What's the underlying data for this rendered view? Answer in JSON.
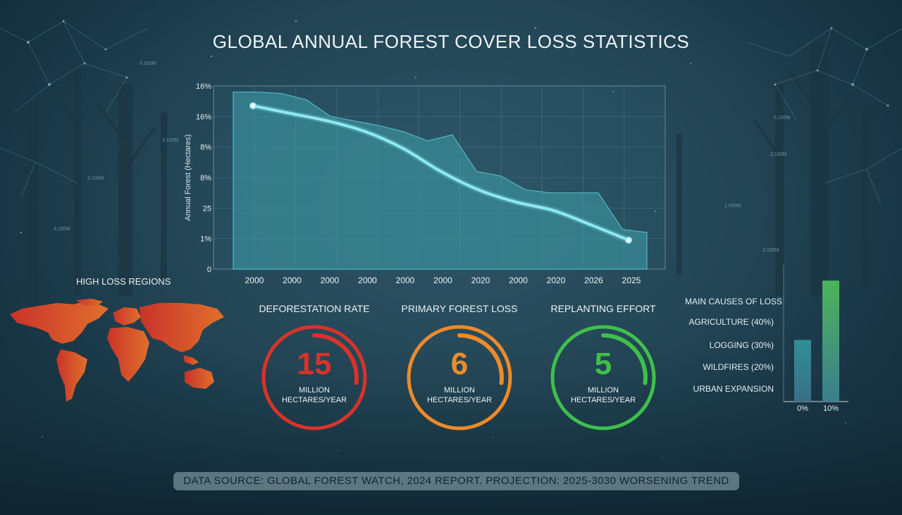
{
  "title": "GLOBAL ANNUAL FOREST COVER LOSS STATISTICS",
  "colors": {
    "accent": "#7fe3ee",
    "red": "#d8332a",
    "orange": "#ee8a2a",
    "green": "#3fbf4b"
  },
  "chart_data": [
    {
      "type": "area",
      "title": "GLOBAL ANNUAL FOREST COVER LOSS STATISTICS",
      "ylabel": "Annual Forest (Hectares)",
      "xlabel": "",
      "y_tick_labels": [
        "0",
        "1%",
        "25",
        "8%",
        "8%",
        "16%",
        "16%"
      ],
      "x_tick_labels": [
        "2000",
        "2000",
        "2000",
        "2000",
        "2000",
        "2000",
        "2020",
        "2000",
        "2020",
        "2026",
        "2025"
      ],
      "grid": true,
      "ylim": [
        0,
        6
      ],
      "series": [
        {
          "values": [
            5.8,
            5.8,
            5.75,
            5.55,
            5.0,
            4.85,
            4.7,
            4.5,
            4.2,
            4.4,
            3.2,
            3.05,
            2.6,
            2.5,
            2.5,
            2.5,
            1.3,
            1.2
          ]
        },
        {
          "values": [
            5.35,
            5.1,
            4.85,
            4.5,
            3.95,
            3.2,
            2.6,
            2.2,
            1.92,
            1.45,
            0.95
          ]
        }
      ]
    },
    {
      "type": "bar",
      "title": "MAIN CAUSES OF LOSS",
      "categories": [
        "0%",
        "10%"
      ],
      "values": [
        2.6,
        5.1
      ],
      "causes": [
        "AGRICULTURE (40%)",
        "LOGGING (30%)",
        "WILDFIRES (20%)",
        "URBAN EXPANSION"
      ],
      "ylim": [
        0,
        6
      ]
    }
  ],
  "regions": {
    "title": "HIGH LOSS REGIONS"
  },
  "gauges": [
    {
      "title": "DEFORESTATION RATE",
      "value": "15",
      "unit_line1": "MILLION",
      "unit_line2": "HECTARES/YEAR",
      "color": "#d8332a",
      "fill_fraction": 0.27
    },
    {
      "title": "PRIMARY FOREST LOSS",
      "value": "6",
      "unit_line1": "MILLION",
      "unit_line2": "HECTARES/YEAR",
      "color": "#ee8a2a",
      "fill_fraction": 0.27
    },
    {
      "title": "REPLANTING EFFORT",
      "value": "5",
      "unit_line1": "MILLION",
      "unit_line2": "HECTARES/YEAR",
      "color": "#3fbf4b",
      "fill_fraction": 0.27
    }
  ],
  "bg_labels": [
    "3.100M",
    "3.100M",
    "3.100M",
    "3.100M",
    "3.100M",
    "2.100M",
    "1.000M",
    "3.100M"
  ],
  "footer": "DATA SOURCE: GLOBAL FOREST WATCH, 2024 REPORT. PROJECTION: 2025-3030 WORSENING TREND"
}
